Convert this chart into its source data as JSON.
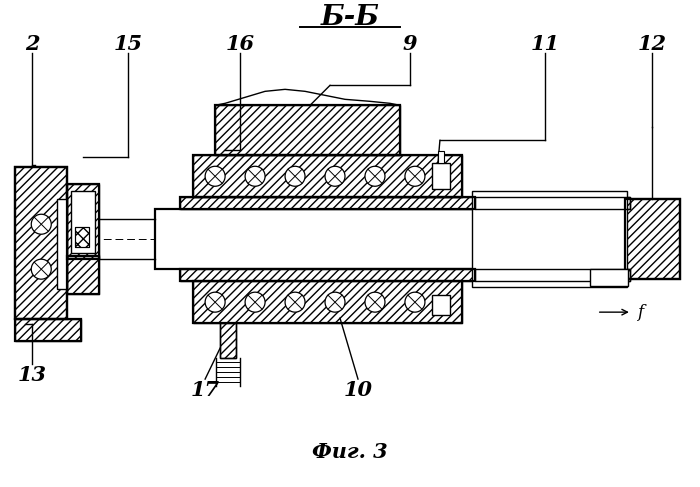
{
  "title": "Б-Б",
  "caption": "Фиг. 3",
  "bg_color": "#ffffff",
  "line_color": "#000000",
  "figsize": [
    7.0,
    4.87
  ],
  "dpi": 100
}
